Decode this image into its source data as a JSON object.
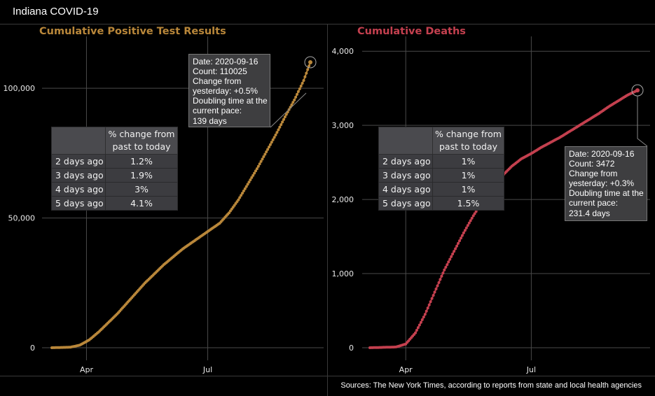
{
  "app": {
    "title": "Indiana COVID-19"
  },
  "source_note": "Sources: The New York Times, according to reports from state and local health agencies",
  "colors": {
    "cases": "#b9873a",
    "deaths": "#c4404f",
    "grid": "#4a4a4a",
    "background": "#000000"
  },
  "panels": [
    {
      "id": "cases",
      "title": "Cumulative Positive Test Results",
      "table": {
        "header": [
          "",
          "% change from past to today"
        ],
        "rows": [
          {
            "label": "2 days ago",
            "value": "1.2%"
          },
          {
            "label": "3 days ago",
            "value": "1.9%"
          },
          {
            "label": "4 days ago",
            "value": "3%"
          },
          {
            "label": "5 days ago",
            "value": "4.1%"
          }
        ]
      },
      "tooltip": {
        "lines": [
          "Date: 2020-09-16",
          "Count: 110025",
          "Change from",
          "yesterday: +0.5%",
          "Doubling time at the",
          "current pace:",
          "139 days"
        ]
      }
    },
    {
      "id": "deaths",
      "title": "Cumulative Deaths",
      "table": {
        "header": [
          "",
          "% change from past to today"
        ],
        "rows": [
          {
            "label": "2 days ago",
            "value": "1%"
          },
          {
            "label": "3 days ago",
            "value": "1%"
          },
          {
            "label": "4 days ago",
            "value": "1%"
          },
          {
            "label": "5 days ago",
            "value": "1.5%"
          }
        ]
      },
      "tooltip": {
        "lines": [
          "Date: 2020-09-16",
          "Count: 3472",
          "Change from",
          "yesterday: +0.3%",
          "Doubling time at the",
          "current pace:",
          "231.4 days"
        ]
      }
    }
  ],
  "chart_data": [
    {
      "type": "scatter",
      "title": "Cumulative Positive Test Results",
      "x_range": [
        "2020-03-06",
        "2020-09-16"
      ],
      "ylim": [
        0,
        120000
      ],
      "y_ticks": [
        0,
        50000,
        100000
      ],
      "y_tick_labels": [
        "0",
        "50,000",
        "100,000"
      ],
      "x_ticks": [
        "2020-04-01",
        "2020-07-01"
      ],
      "x_tick_labels": [
        "Apr",
        "Jul"
      ],
      "grid": true,
      "highlight": {
        "x": "2020-09-16",
        "y": 110025
      },
      "x": [
        "2020-03-06",
        "2020-03-20",
        "2020-03-27",
        "2020-04-03",
        "2020-04-10",
        "2020-04-17",
        "2020-04-24",
        "2020-05-01",
        "2020-05-08",
        "2020-05-15",
        "2020-05-22",
        "2020-05-29",
        "2020-06-05",
        "2020-06-12",
        "2020-06-19",
        "2020-06-26",
        "2020-07-03",
        "2020-07-10",
        "2020-07-17",
        "2020-07-24",
        "2020-07-31",
        "2020-08-07",
        "2020-08-14",
        "2020-08-21",
        "2020-08-28",
        "2020-09-04",
        "2020-09-11",
        "2020-09-16"
      ],
      "y": [
        0,
        200,
        1000,
        3000,
        6000,
        9500,
        13000,
        17000,
        21000,
        25000,
        28500,
        32000,
        35000,
        38000,
        40500,
        43000,
        45500,
        48000,
        52000,
        57000,
        63000,
        69000,
        75500,
        82000,
        89000,
        95500,
        103000,
        110025
      ]
    },
    {
      "type": "scatter",
      "title": "Cumulative Deaths",
      "x_range": [
        "2020-03-06",
        "2020-09-16"
      ],
      "ylim": [
        0,
        4200
      ],
      "y_ticks": [
        0,
        1000,
        2000,
        3000,
        4000
      ],
      "y_tick_labels": [
        "0",
        "1,000",
        "2,000",
        "3,000",
        "4,000"
      ],
      "x_ticks": [
        "2020-04-01",
        "2020-07-01"
      ],
      "x_tick_labels": [
        "Apr",
        "Jul"
      ],
      "grid": true,
      "highlight": {
        "x": "2020-09-16",
        "y": 3472
      },
      "x": [
        "2020-03-06",
        "2020-03-25",
        "2020-04-01",
        "2020-04-08",
        "2020-04-15",
        "2020-04-22",
        "2020-04-29",
        "2020-05-06",
        "2020-05-13",
        "2020-05-20",
        "2020-05-27",
        "2020-06-03",
        "2020-06-10",
        "2020-06-17",
        "2020-06-24",
        "2020-07-01",
        "2020-07-08",
        "2020-07-15",
        "2020-07-22",
        "2020-07-29",
        "2020-08-05",
        "2020-08-12",
        "2020-08-19",
        "2020-08-26",
        "2020-09-02",
        "2020-09-09",
        "2020-09-16"
      ],
      "y": [
        0,
        10,
        50,
        200,
        450,
        750,
        1050,
        1300,
        1550,
        1780,
        1980,
        2150,
        2320,
        2450,
        2550,
        2620,
        2700,
        2770,
        2840,
        2920,
        3000,
        3080,
        3160,
        3250,
        3330,
        3410,
        3472
      ]
    }
  ]
}
